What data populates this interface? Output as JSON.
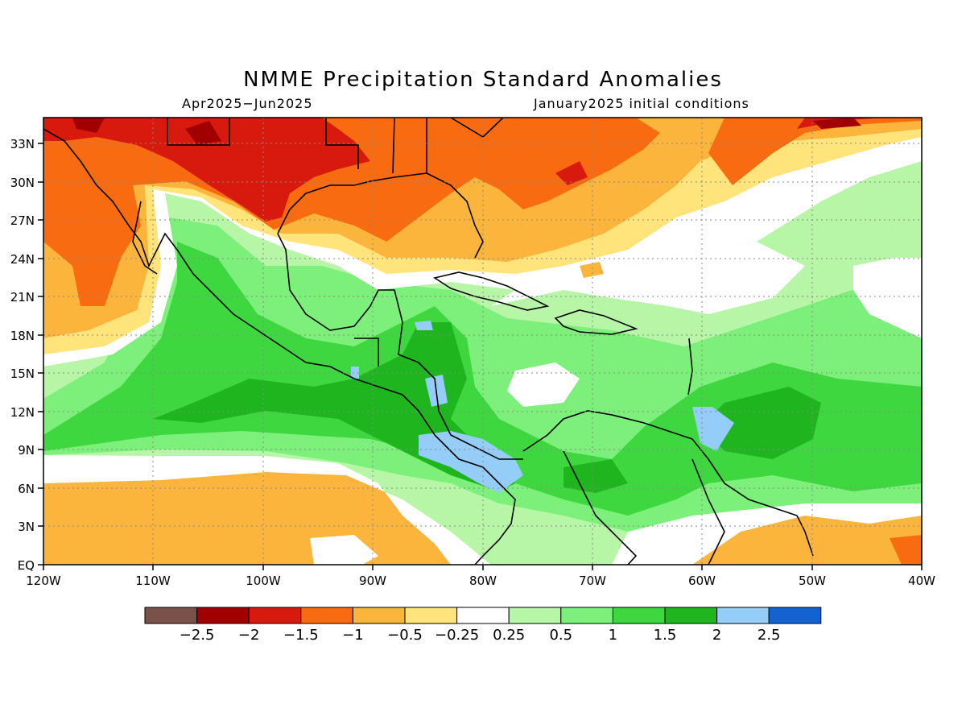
{
  "map": {
    "title": "NMME Precipitation Standard Anomalies",
    "period": "Apr2025−Jun2025",
    "initial_conditions": "January2025 initial conditions",
    "lon_ticks": [
      "120W",
      "110W",
      "100W",
      "90W",
      "80W",
      "70W",
      "60W",
      "50W",
      "40W"
    ],
    "lat_ticks": [
      "33N",
      "30N",
      "27N",
      "24N",
      "21N",
      "18N",
      "15N",
      "12N",
      "9N",
      "6N",
      "3N",
      "EQ"
    ],
    "extent": {
      "lon": [
        -120,
        -40
      ],
      "lat": [
        0,
        35
      ]
    },
    "gridlines": true
  },
  "colorbar": {
    "colors": [
      "#7a5148",
      "#a00000",
      "#d71a0d",
      "#f86b10",
      "#fcb53c",
      "#ffe47b",
      "#ffffff",
      "#b7f6a7",
      "#7cf07a",
      "#3fd73f",
      "#1fb51f",
      "#94cdf7",
      "#1462d2"
    ],
    "labels": [
      "−2.5",
      "−2",
      "−1.5",
      "−1",
      "−0.5",
      "−0.25",
      "0.25",
      "0.5",
      "1",
      "1.5",
      "2",
      "2.5"
    ]
  }
}
